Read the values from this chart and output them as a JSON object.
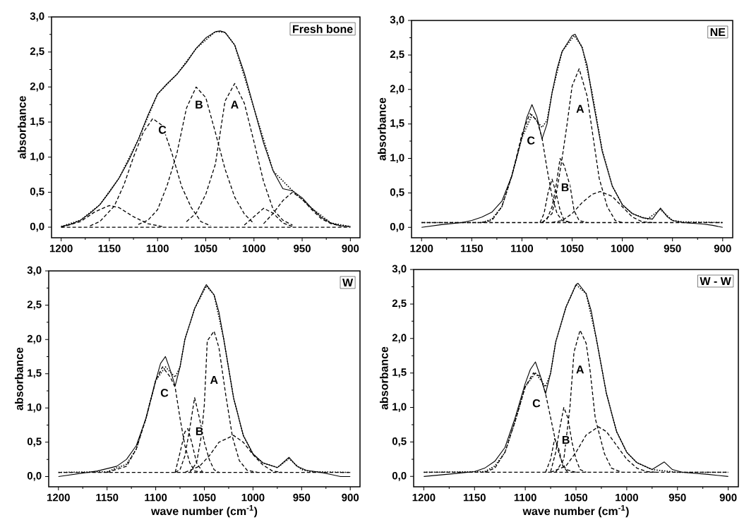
{
  "chart_data": [
    {
      "type": "line",
      "title": "Fresh bone",
      "ylabel": "absorbance",
      "xlim": [
        1210,
        890
      ],
      "ylim": [
        -0.15,
        3.0
      ],
      "xticks": [
        1200,
        1150,
        1100,
        1050,
        1000,
        950,
        900
      ],
      "yticks": [
        {
          "value": 0,
          "label": "0,0"
        },
        {
          "value": 0.5,
          "label": "0,5"
        },
        {
          "value": 1,
          "label": "1,0"
        },
        {
          "value": 1.5,
          "label": "1,5"
        },
        {
          "value": 2,
          "label": "2,0"
        },
        {
          "value": 2.5,
          "label": "2,5"
        },
        {
          "value": 3,
          "label": "3,0"
        }
      ],
      "series": [
        {
          "color": "#000000",
          "line_style": "solid",
          "x": [
            1200,
            1190,
            1180,
            1170,
            1160,
            1150,
            1140,
            1130,
            1120,
            1110,
            1100,
            1090,
            1080,
            1070,
            1060,
            1050,
            1040,
            1035,
            1030,
            1020,
            1010,
            1000,
            990,
            980,
            970,
            960,
            950,
            940,
            930,
            920,
            910,
            900
          ],
          "values": [
            0.01,
            0.04,
            0.1,
            0.2,
            0.32,
            0.5,
            0.7,
            0.95,
            1.25,
            1.6,
            1.9,
            2.05,
            2.18,
            2.35,
            2.55,
            2.7,
            2.79,
            2.8,
            2.78,
            2.6,
            2.2,
            1.7,
            1.2,
            0.8,
            0.55,
            0.52,
            0.42,
            0.27,
            0.14,
            0.06,
            0.02,
            0.01
          ]
        },
        {
          "color": "#000000",
          "line_style": "dotted",
          "x": [
            1200,
            1180,
            1160,
            1140,
            1120,
            1100,
            1080,
            1060,
            1040,
            1030,
            1020,
            1000,
            980,
            960,
            940,
            920,
            900
          ],
          "values": [
            0.01,
            0.1,
            0.32,
            0.7,
            1.25,
            1.9,
            2.18,
            2.55,
            2.79,
            2.78,
            2.6,
            1.7,
            0.8,
            0.52,
            0.27,
            0.06,
            0.01
          ]
        },
        {
          "color": "#000000",
          "line_style": "dashed",
          "x": [
            1170,
            1160,
            1145,
            1135,
            1125,
            1115,
            1105,
            1095,
            1085,
            1075,
            1065,
            1055,
            1045
          ],
          "values": [
            0.02,
            0.08,
            0.3,
            0.6,
            1.0,
            1.35,
            1.55,
            1.45,
            1.05,
            0.58,
            0.28,
            0.08,
            0.02
          ]
        },
        {
          "color": "#000000",
          "line_style": "dashed",
          "x": [
            1120,
            1110,
            1100,
            1090,
            1080,
            1070,
            1060,
            1050,
            1040,
            1030,
            1020,
            1010,
            1000
          ],
          "values": [
            0.04,
            0.1,
            0.25,
            0.6,
            1.05,
            1.7,
            2.0,
            1.85,
            1.35,
            0.83,
            0.43,
            0.19,
            0.05
          ]
        },
        {
          "color": "#000000",
          "line_style": "dashed",
          "x": [
            1070,
            1060,
            1050,
            1040,
            1030,
            1020,
            1010,
            1000,
            990,
            980,
            970,
            960
          ],
          "values": [
            0.08,
            0.2,
            0.47,
            0.9,
            1.8,
            2.05,
            1.77,
            1.22,
            0.65,
            0.25,
            0.1,
            0.03
          ]
        },
        {
          "color": "#000000",
          "line_style": "dashed",
          "x": [
            1200,
            1180,
            1165,
            1150,
            1140,
            1125,
            1110,
            1095
          ],
          "values": [
            0.0,
            0.08,
            0.22,
            0.31,
            0.28,
            0.15,
            0.05,
            0.01
          ]
        },
        {
          "color": "#000000",
          "line_style": "dashed",
          "x": [
            1010,
            1000,
            990,
            980,
            970,
            960
          ],
          "values": [
            0.03,
            0.15,
            0.27,
            0.2,
            0.06,
            0.01
          ]
        },
        {
          "color": "#000000",
          "line_style": "dashed",
          "x": [
            990,
            980,
            970,
            960,
            950,
            940,
            930,
            920,
            910
          ],
          "values": [
            0.05,
            0.2,
            0.38,
            0.5,
            0.4,
            0.25,
            0.12,
            0.05,
            0.02
          ]
        },
        {
          "color": "#000000",
          "line_style": "dashed",
          "x": [
            1200,
            900
          ],
          "values": [
            0,
            0
          ]
        }
      ],
      "annotations": [
        {
          "text": "C",
          "x": 1095,
          "y": 1.39
        },
        {
          "text": "B",
          "x": 1057,
          "y": 1.75
        },
        {
          "text": "A",
          "x": 1020,
          "y": 1.75
        }
      ]
    },
    {
      "type": "line",
      "title": "NE",
      "ylabel": "absorbance",
      "xlim": [
        1210,
        890
      ],
      "ylim": [
        -0.15,
        3.0
      ],
      "xticks": [
        1200,
        1150,
        1100,
        1050,
        1000,
        950,
        900
      ],
      "yticks": [
        {
          "value": 0,
          "label": "0,0"
        },
        {
          "value": 0.5,
          "label": "0,5"
        },
        {
          "value": 1,
          "label": "1,0"
        },
        {
          "value": 1.5,
          "label": "1,5"
        },
        {
          "value": 2,
          "label": "2,0"
        },
        {
          "value": 2.5,
          "label": "2,5"
        },
        {
          "value": 3,
          "label": "3,0"
        }
      ],
      "series": [
        {
          "color": "#000000",
          "line_style": "solid",
          "x": [
            1200,
            1180,
            1160,
            1150,
            1140,
            1130,
            1120,
            1110,
            1100,
            1095,
            1090,
            1085,
            1080,
            1075,
            1070,
            1065,
            1060,
            1050,
            1047,
            1040,
            1035,
            1030,
            1020,
            1010,
            1000,
            990,
            980,
            970,
            962,
            955,
            950,
            940,
            920,
            910,
            900
          ],
          "values": [
            0.0,
            0.04,
            0.07,
            0.1,
            0.15,
            0.22,
            0.38,
            0.75,
            1.3,
            1.6,
            1.78,
            1.6,
            1.28,
            1.5,
            1.95,
            2.3,
            2.55,
            2.78,
            2.8,
            2.6,
            2.35,
            1.9,
            1.1,
            0.6,
            0.33,
            0.2,
            0.14,
            0.12,
            0.28,
            0.15,
            0.1,
            0.07,
            0.05,
            0.03,
            0.0
          ]
        },
        {
          "color": "#000000",
          "line_style": "dotted",
          "x": [
            1200,
            1140,
            1130,
            1120,
            1110,
            1100,
            1090,
            1080,
            1075,
            1070,
            1060,
            1048,
            1040,
            1030,
            1020,
            1010,
            1000,
            990,
            975,
            962,
            950,
            940,
            900
          ],
          "values": [
            0.07,
            0.07,
            0.12,
            0.3,
            0.75,
            1.3,
            1.63,
            1.45,
            1.55,
            1.95,
            2.55,
            2.78,
            2.62,
            1.95,
            1.12,
            0.6,
            0.33,
            0.2,
            0.12,
            0.26,
            0.1,
            0.08,
            0.07
          ]
        },
        {
          "color": "#000000",
          "line_style": "dashed",
          "x": [
            1140,
            1130,
            1120,
            1110,
            1100,
            1092,
            1085,
            1080,
            1075,
            1070,
            1065,
            1060,
            1050
          ],
          "values": [
            0.07,
            0.1,
            0.3,
            0.75,
            1.35,
            1.65,
            1.55,
            1.3,
            0.85,
            0.45,
            0.2,
            0.1,
            0.07
          ]
        },
        {
          "color": "#000000",
          "line_style": "dashed",
          "x": [
            1080,
            1070,
            1065,
            1060,
            1055,
            1050,
            1043,
            1035,
            1030,
            1023,
            1015,
            1007,
            1000
          ],
          "values": [
            0.07,
            0.2,
            0.55,
            1.0,
            1.5,
            2.05,
            2.3,
            1.9,
            1.4,
            0.71,
            0.3,
            0.1,
            0.07
          ]
        },
        {
          "color": "#000000",
          "line_style": "dashed",
          "x": [
            1080,
            1075,
            1070,
            1066,
            1062,
            1058,
            1052,
            1048,
            1043,
            1035
          ],
          "values": [
            0.07,
            0.12,
            0.3,
            0.6,
            1.0,
            0.9,
            0.6,
            0.24,
            0.1,
            0.07
          ]
        },
        {
          "color": "#000000",
          "line_style": "dashed",
          "x": [
            1082,
            1078,
            1074,
            1070,
            1066,
            1062,
            1058,
            1052
          ],
          "values": [
            0.07,
            0.2,
            0.5,
            0.7,
            0.5,
            0.25,
            0.1,
            0.07
          ]
        },
        {
          "color": "#000000",
          "line_style": "dashed",
          "x": [
            1070,
            1060,
            1050,
            1040,
            1030,
            1022,
            1010,
            1000,
            990,
            980,
            970
          ],
          "values": [
            0.07,
            0.1,
            0.2,
            0.36,
            0.48,
            0.52,
            0.45,
            0.3,
            0.15,
            0.08,
            0.07
          ]
        },
        {
          "color": "#000000",
          "line_style": "dashed",
          "x": [
            1200,
            900
          ],
          "values": [
            0.07,
            0.07
          ]
        }
      ],
      "annotations": [
        {
          "text": "C",
          "x": 1091,
          "y": 1.26
        },
        {
          "text": "B",
          "x": 1057,
          "y": 0.58
        },
        {
          "text": "A",
          "x": 1042,
          "y": 1.72
        }
      ]
    },
    {
      "type": "line",
      "title": "W",
      "xlabel": "wave number (cm$^{-1}$)",
      "ylabel": "absorbance",
      "xlim": [
        1210,
        890
      ],
      "ylim": [
        -0.15,
        3.0
      ],
      "xticks": [
        1200,
        1150,
        1100,
        1050,
        1000,
        950,
        900
      ],
      "yticks": [
        {
          "value": 0,
          "label": "0,0"
        },
        {
          "value": 0.5,
          "label": "0,5"
        },
        {
          "value": 1,
          "label": "1,0"
        },
        {
          "value": 1.5,
          "label": "1,5"
        },
        {
          "value": 2,
          "label": "2,0"
        },
        {
          "value": 2.5,
          "label": "2,5"
        },
        {
          "value": 3,
          "label": "3,0"
        }
      ],
      "series": [
        {
          "color": "#000000",
          "line_style": "solid",
          "x": [
            1200,
            1180,
            1160,
            1140,
            1130,
            1120,
            1110,
            1100,
            1095,
            1090,
            1085,
            1080,
            1075,
            1070,
            1060,
            1050,
            1048,
            1040,
            1035,
            1030,
            1020,
            1010,
            1000,
            990,
            975,
            963,
            955,
            945,
            930,
            920,
            910,
            900
          ],
          "values": [
            0.0,
            0.04,
            0.08,
            0.15,
            0.25,
            0.45,
            0.85,
            1.4,
            1.65,
            1.75,
            1.55,
            1.32,
            1.6,
            2.0,
            2.45,
            2.75,
            2.8,
            2.65,
            2.4,
            2.0,
            1.15,
            0.6,
            0.33,
            0.2,
            0.13,
            0.28,
            0.15,
            0.09,
            0.06,
            0.03,
            0.0,
            0.0
          ]
        },
        {
          "color": "#000000",
          "line_style": "dotted",
          "x": [
            1200,
            1150,
            1130,
            1120,
            1110,
            1100,
            1090,
            1080,
            1075,
            1070,
            1060,
            1048,
            1040,
            1030,
            1020,
            1010,
            1000,
            990,
            975,
            963,
            950,
            940,
            900
          ],
          "values": [
            0.06,
            0.07,
            0.18,
            0.4,
            0.85,
            1.4,
            1.6,
            1.45,
            1.6,
            2.0,
            2.45,
            2.78,
            2.65,
            2.0,
            1.15,
            0.6,
            0.33,
            0.2,
            0.13,
            0.26,
            0.1,
            0.07,
            0.06
          ]
        },
        {
          "color": "#000000",
          "line_style": "dashed",
          "x": [
            1150,
            1130,
            1120,
            1110,
            1100,
            1093,
            1085,
            1080,
            1075,
            1070,
            1065,
            1060,
            1050
          ],
          "values": [
            0.06,
            0.15,
            0.4,
            0.85,
            1.4,
            1.6,
            1.45,
            1.3,
            0.85,
            0.45,
            0.2,
            0.08,
            0.06
          ]
        },
        {
          "color": "#000000",
          "line_style": "dashed",
          "x": [
            1065,
            1058,
            1053,
            1050,
            1047,
            1040,
            1035,
            1028,
            1021,
            1014,
            1006,
            995
          ],
          "values": [
            0.06,
            0.2,
            0.6,
            1.05,
            1.98,
            2.12,
            1.88,
            1.19,
            0.57,
            0.23,
            0.09,
            0.06
          ]
        },
        {
          "color": "#000000",
          "line_style": "dashed",
          "x": [
            1080,
            1075,
            1070,
            1065,
            1060,
            1055,
            1050,
            1045,
            1040,
            1035
          ],
          "values": [
            0.06,
            0.1,
            0.3,
            0.7,
            1.15,
            0.85,
            0.5,
            0.25,
            0.1,
            0.06
          ]
        },
        {
          "color": "#000000",
          "line_style": "dashed",
          "x": [
            1080,
            1075,
            1070,
            1067,
            1063,
            1058,
            1052
          ],
          "values": [
            0.06,
            0.35,
            0.65,
            0.7,
            0.5,
            0.2,
            0.07
          ]
        },
        {
          "color": "#000000",
          "line_style": "dashed",
          "x": [
            1070,
            1055,
            1045,
            1035,
            1020,
            1010,
            1000,
            990,
            980,
            970
          ],
          "values": [
            0.06,
            0.15,
            0.3,
            0.5,
            0.6,
            0.5,
            0.32,
            0.17,
            0.08,
            0.06
          ]
        },
        {
          "color": "#000000",
          "line_style": "dashed",
          "x": [
            1200,
            900
          ],
          "values": [
            0.06,
            0.06
          ]
        }
      ],
      "annotations": [
        {
          "text": "C",
          "x": 1091,
          "y": 1.22
        },
        {
          "text": "B",
          "x": 1055,
          "y": 0.66
        },
        {
          "text": "A",
          "x": 1040,
          "y": 1.41
        }
      ]
    },
    {
      "type": "line",
      "title": "W - W",
      "xlabel": "wave number (cm$^{-1}$)",
      "ylabel": "absorbance",
      "xlim": [
        1210,
        890
      ],
      "ylim": [
        -0.15,
        3.0
      ],
      "xticks": [
        1200,
        1150,
        1100,
        1050,
        1000,
        950,
        900
      ],
      "yticks": [
        {
          "value": 0,
          "label": "0,0"
        },
        {
          "value": 0.5,
          "label": "0,5"
        },
        {
          "value": 1,
          "label": "1,0"
        },
        {
          "value": 1.5,
          "label": "1,5"
        },
        {
          "value": 2,
          "label": "2,0"
        },
        {
          "value": 2.5,
          "label": "2,5"
        },
        {
          "value": 3,
          "label": "3,0"
        }
      ],
      "series": [
        {
          "color": "#000000",
          "line_style": "solid",
          "x": [
            1200,
            1170,
            1150,
            1140,
            1130,
            1120,
            1110,
            1100,
            1095,
            1090,
            1085,
            1080,
            1075,
            1070,
            1060,
            1050,
            1048,
            1040,
            1035,
            1030,
            1020,
            1010,
            1000,
            990,
            975,
            963,
            955,
            945,
            920,
            900
          ],
          "values": [
            0.0,
            0.04,
            0.07,
            0.12,
            0.22,
            0.42,
            0.85,
            1.35,
            1.55,
            1.66,
            1.45,
            1.2,
            1.5,
            1.95,
            2.45,
            2.78,
            2.8,
            2.65,
            2.4,
            2.0,
            1.2,
            0.65,
            0.35,
            0.2,
            0.1,
            0.21,
            0.1,
            0.06,
            0.03,
            0.0
          ]
        },
        {
          "color": "#000000",
          "line_style": "dotted",
          "x": [
            1200,
            1140,
            1130,
            1120,
            1110,
            1100,
            1090,
            1080,
            1075,
            1070,
            1060,
            1050,
            1040,
            1030,
            1020,
            1010,
            1000,
            990,
            975,
            963,
            950,
            900
          ],
          "values": [
            0.06,
            0.07,
            0.15,
            0.35,
            0.8,
            1.3,
            1.5,
            1.3,
            1.5,
            1.95,
            2.45,
            2.78,
            2.65,
            2.0,
            1.2,
            0.65,
            0.35,
            0.2,
            0.1,
            0.08,
            0.06,
            0.06
          ]
        },
        {
          "color": "#000000",
          "line_style": "dashed",
          "x": [
            1140,
            1130,
            1120,
            1110,
            1100,
            1092,
            1085,
            1080,
            1075,
            1070,
            1065,
            1060,
            1050
          ],
          "values": [
            0.06,
            0.12,
            0.35,
            0.8,
            1.3,
            1.5,
            1.45,
            1.2,
            0.85,
            0.5,
            0.25,
            0.1,
            0.06
          ]
        },
        {
          "color": "#000000",
          "line_style": "dashed",
          "x": [
            1070,
            1062,
            1056,
            1052,
            1046,
            1040,
            1036,
            1031,
            1022,
            1015,
            1005
          ],
          "values": [
            0.06,
            0.25,
            1.0,
            1.8,
            2.12,
            1.93,
            1.52,
            0.84,
            0.33,
            0.12,
            0.06
          ]
        },
        {
          "color": "#000000",
          "line_style": "dashed",
          "x": [
            1075,
            1070,
            1066,
            1062,
            1058,
            1054,
            1050,
            1046,
            1040
          ],
          "values": [
            0.07,
            0.35,
            0.7,
            1.0,
            0.85,
            0.5,
            0.25,
            0.1,
            0.06
          ]
        },
        {
          "color": "#000000",
          "line_style": "dashed",
          "x": [
            1080,
            1075,
            1071,
            1067,
            1063,
            1058
          ],
          "values": [
            0.06,
            0.25,
            0.55,
            0.4,
            0.15,
            0.06
          ]
        },
        {
          "color": "#000000",
          "line_style": "dashed",
          "x": [
            1075,
            1060,
            1050,
            1040,
            1028,
            1020,
            1010,
            1000,
            990,
            980,
            970
          ],
          "values": [
            0.06,
            0.15,
            0.35,
            0.6,
            0.72,
            0.65,
            0.45,
            0.25,
            0.12,
            0.07,
            0.06
          ]
        },
        {
          "color": "#000000",
          "line_style": "dashed",
          "x": [
            1200,
            900
          ],
          "values": [
            0.06,
            0.06
          ]
        }
      ],
      "annotations": [
        {
          "text": "C",
          "x": 1089,
          "y": 1.06
        },
        {
          "text": "B",
          "x": 1060,
          "y": 0.53
        },
        {
          "text": "A",
          "x": 1046,
          "y": 1.55
        }
      ]
    }
  ]
}
